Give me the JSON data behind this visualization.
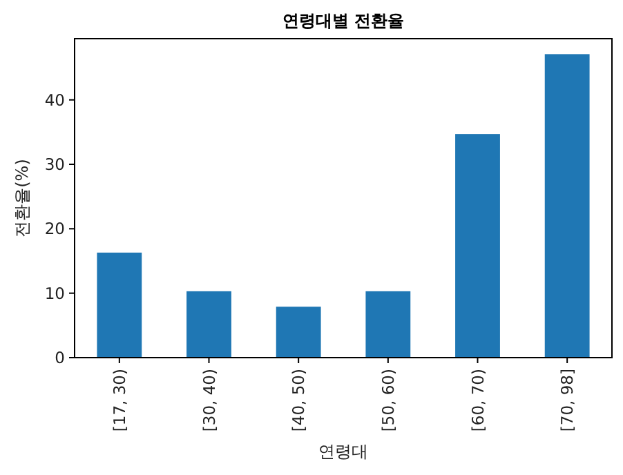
{
  "chart_data": {
    "type": "bar",
    "title": "연령대별 전환율",
    "xlabel": "연령대",
    "ylabel": "전환율(%)",
    "categories": [
      "[17, 30)",
      "[30, 40)",
      "[40, 50)",
      "[50, 60)",
      "[60, 70)",
      "[70, 98]"
    ],
    "values": [
      16.3,
      10.3,
      7.9,
      10.3,
      34.7,
      47.1
    ],
    "color": "#1f77b4",
    "ylim": [
      0,
      49.5
    ],
    "yticks": [
      0,
      10,
      20,
      30,
      40
    ],
    "grid": false
  }
}
